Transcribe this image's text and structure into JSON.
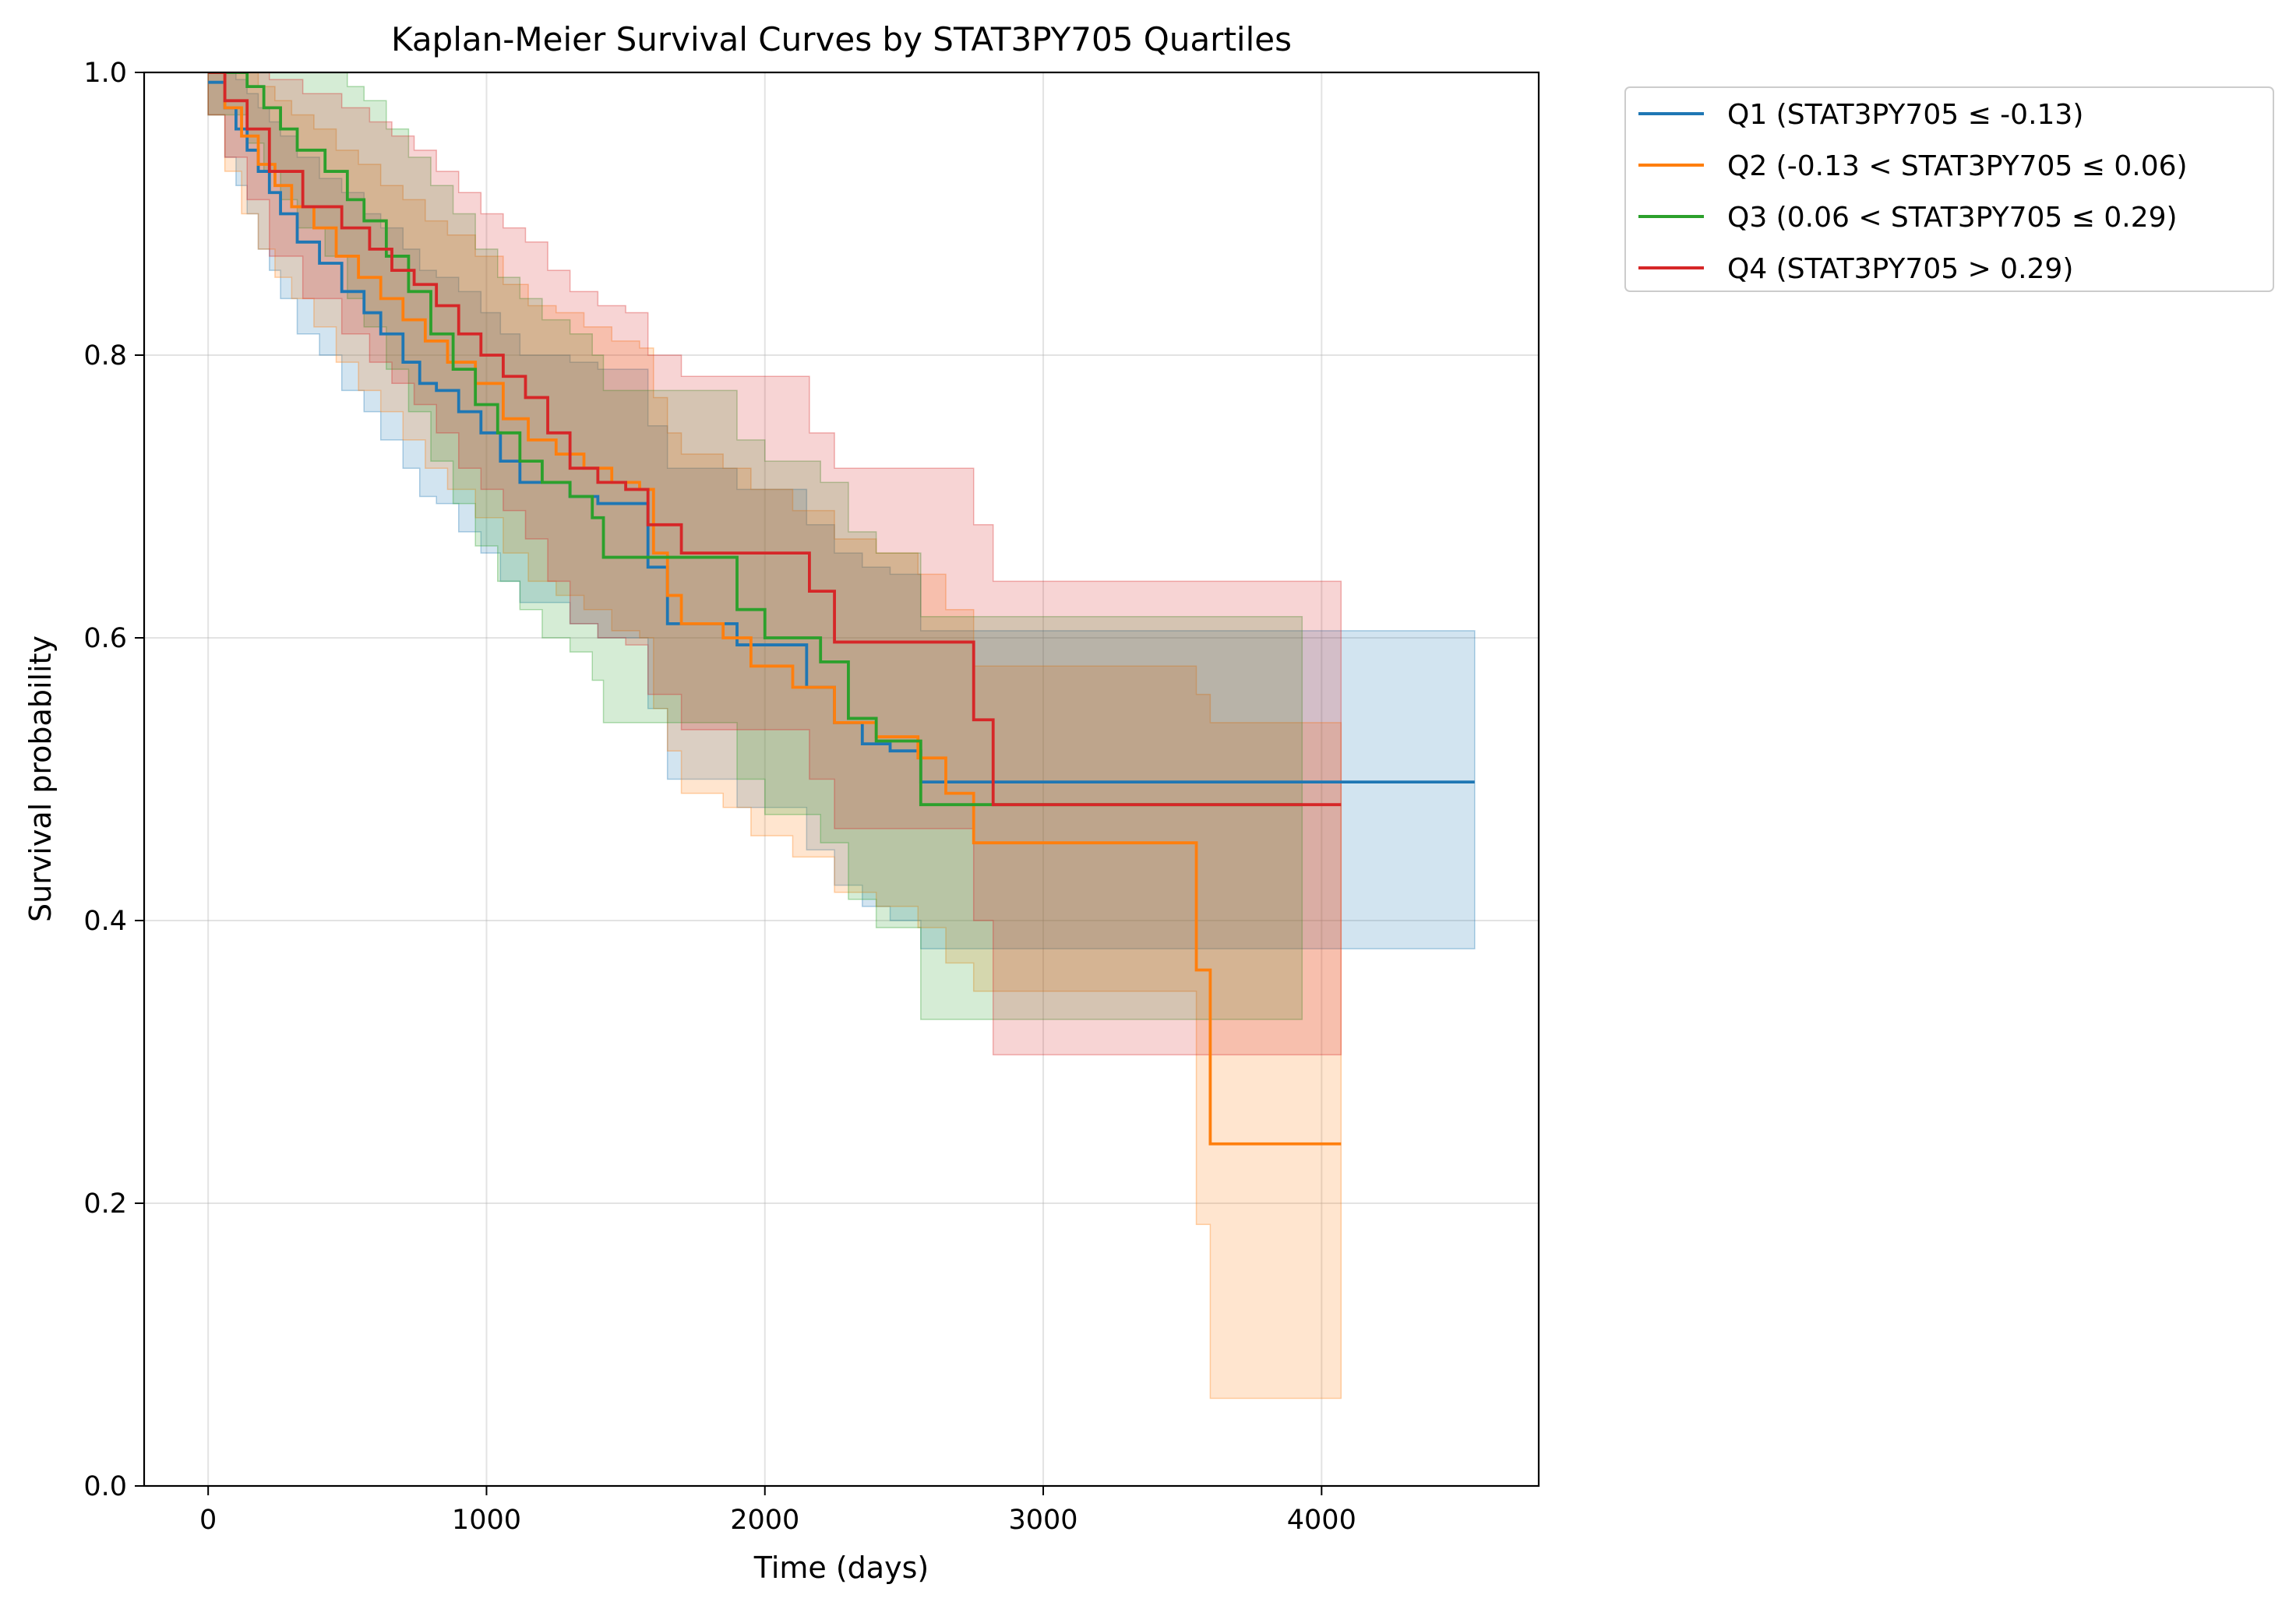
{
  "chart_data": {
    "type": "line",
    "title": "Kaplan-Meier Survival Curves by STAT3PY705 Quartiles",
    "xlabel": "Time (days)",
    "ylabel": "Survival probability",
    "xlim": [
      -230,
      4780
    ],
    "ylim": [
      0.0,
      1.0
    ],
    "xticks": [
      0,
      1000,
      2000,
      3000,
      4000
    ],
    "yticks": [
      0.0,
      0.2,
      0.4,
      0.6,
      0.8,
      1.0
    ],
    "xtick_labels": [
      "0",
      "1000",
      "2000",
      "3000",
      "4000"
    ],
    "ytick_labels": [
      "0.0",
      "0.2",
      "0.4",
      "0.6",
      "0.8",
      "1.0"
    ],
    "grid": true,
    "legend_position": "outside-top-right",
    "series": [
      {
        "name": "Q1 (STAT3PY705 ≤ -0.13)",
        "color": "#1f77b4",
        "x": [
          0,
          40,
          60,
          100,
          140,
          180,
          220,
          260,
          320,
          400,
          480,
          560,
          620,
          700,
          760,
          820,
          900,
          980,
          1050,
          1120,
          1200,
          1300,
          1400,
          1500,
          1580,
          1650,
          1700,
          1900,
          2000,
          2150,
          2250,
          2350,
          2450,
          2560,
          3000,
          3500,
          4000,
          4550
        ],
        "y": [
          0.993,
          0.993,
          0.975,
          0.96,
          0.945,
          0.93,
          0.915,
          0.9,
          0.88,
          0.865,
          0.845,
          0.83,
          0.815,
          0.795,
          0.78,
          0.775,
          0.76,
          0.745,
          0.725,
          0.71,
          0.71,
          0.7,
          0.695,
          0.695,
          0.65,
          0.61,
          0.61,
          0.595,
          0.595,
          0.565,
          0.54,
          0.525,
          0.52,
          0.498,
          0.498,
          0.498,
          0.498,
          0.498
        ],
        "upper": [
          1.0,
          1.0,
          1.0,
          0.995,
          0.985,
          0.975,
          0.965,
          0.955,
          0.94,
          0.925,
          0.915,
          0.9,
          0.89,
          0.875,
          0.86,
          0.855,
          0.845,
          0.83,
          0.815,
          0.8,
          0.8,
          0.795,
          0.79,
          0.79,
          0.75,
          0.72,
          0.72,
          0.705,
          0.705,
          0.68,
          0.66,
          0.65,
          0.645,
          0.605,
          0.605,
          0.605,
          0.605,
          0.605
        ],
        "lower": [
          0.97,
          0.97,
          0.94,
          0.92,
          0.9,
          0.875,
          0.86,
          0.84,
          0.815,
          0.8,
          0.775,
          0.76,
          0.74,
          0.72,
          0.7,
          0.695,
          0.675,
          0.66,
          0.64,
          0.625,
          0.625,
          0.61,
          0.6,
          0.6,
          0.55,
          0.5,
          0.5,
          0.48,
          0.48,
          0.45,
          0.425,
          0.41,
          0.4,
          0.38,
          0.38,
          0.38,
          0.38,
          0.38
        ]
      },
      {
        "name": "Q2 (-0.13 < STAT3PY705 ≤ 0.06)",
        "color": "#ff7f0e",
        "x": [
          0,
          60,
          120,
          180,
          240,
          300,
          380,
          460,
          540,
          620,
          700,
          780,
          860,
          960,
          1060,
          1150,
          1250,
          1350,
          1450,
          1550,
          1600,
          1650,
          1700,
          1850,
          1950,
          2100,
          2250,
          2400,
          2550,
          2650,
          2750,
          3000,
          3550,
          3600,
          3700,
          4070
        ],
        "y": [
          1.0,
          0.975,
          0.955,
          0.935,
          0.92,
          0.905,
          0.89,
          0.87,
          0.855,
          0.84,
          0.825,
          0.81,
          0.795,
          0.78,
          0.755,
          0.74,
          0.73,
          0.72,
          0.71,
          0.705,
          0.66,
          0.63,
          0.61,
          0.6,
          0.58,
          0.565,
          0.54,
          0.53,
          0.515,
          0.49,
          0.455,
          0.455,
          0.365,
          0.242,
          0.242,
          0.242
        ],
        "upper": [
          1.0,
          1.0,
          1.0,
          0.99,
          0.98,
          0.97,
          0.96,
          0.945,
          0.935,
          0.92,
          0.91,
          0.895,
          0.885,
          0.87,
          0.85,
          0.835,
          0.83,
          0.82,
          0.81,
          0.805,
          0.77,
          0.745,
          0.73,
          0.72,
          0.705,
          0.69,
          0.67,
          0.66,
          0.645,
          0.62,
          0.58,
          0.58,
          0.56,
          0.54,
          0.54,
          0.54
        ],
        "lower": [
          0.97,
          0.93,
          0.9,
          0.875,
          0.855,
          0.84,
          0.82,
          0.795,
          0.775,
          0.76,
          0.74,
          0.72,
          0.705,
          0.685,
          0.66,
          0.64,
          0.63,
          0.62,
          0.605,
          0.6,
          0.55,
          0.52,
          0.49,
          0.48,
          0.46,
          0.445,
          0.42,
          0.41,
          0.395,
          0.37,
          0.35,
          0.35,
          0.185,
          0.062,
          0.062,
          0.062
        ]
      },
      {
        "name": "Q3 (0.06 < STAT3PY705 ≤ 0.29)",
        "color": "#2ca02c",
        "x": [
          0,
          140,
          200,
          260,
          320,
          420,
          500,
          560,
          640,
          720,
          800,
          880,
          960,
          1040,
          1120,
          1200,
          1300,
          1380,
          1420,
          1500,
          1600,
          1700,
          1800,
          1900,
          2000,
          2100,
          2200,
          2300,
          2400,
          2500,
          2560,
          2700,
          2800,
          3000,
          3500,
          3930
        ],
        "y": [
          1.0,
          0.99,
          0.975,
          0.96,
          0.945,
          0.93,
          0.91,
          0.895,
          0.87,
          0.845,
          0.815,
          0.79,
          0.765,
          0.745,
          0.725,
          0.71,
          0.7,
          0.685,
          0.657,
          0.657,
          0.657,
          0.657,
          0.657,
          0.62,
          0.6,
          0.6,
          0.583,
          0.543,
          0.527,
          0.527,
          0.482,
          0.482,
          0.482,
          0.482,
          0.482,
          0.482
        ],
        "upper": [
          1.0,
          1.0,
          1.0,
          1.0,
          1.0,
          1.0,
          0.99,
          0.98,
          0.96,
          0.94,
          0.92,
          0.9,
          0.875,
          0.855,
          0.84,
          0.825,
          0.815,
          0.8,
          0.775,
          0.775,
          0.775,
          0.775,
          0.775,
          0.74,
          0.725,
          0.725,
          0.71,
          0.675,
          0.66,
          0.66,
          0.615,
          0.615,
          0.615,
          0.615,
          0.615,
          0.615
        ],
        "lower": [
          0.97,
          0.95,
          0.93,
          0.91,
          0.89,
          0.87,
          0.84,
          0.82,
          0.79,
          0.76,
          0.725,
          0.695,
          0.665,
          0.64,
          0.62,
          0.6,
          0.59,
          0.57,
          0.54,
          0.54,
          0.54,
          0.54,
          0.54,
          0.5,
          0.475,
          0.475,
          0.455,
          0.415,
          0.395,
          0.395,
          0.33,
          0.33,
          0.33,
          0.33,
          0.33,
          0.33
        ]
      },
      {
        "name": "Q4 (STAT3PY705 > 0.29)",
        "color": "#d62728",
        "x": [
          0,
          60,
          140,
          220,
          340,
          480,
          580,
          660,
          740,
          820,
          900,
          980,
          1060,
          1140,
          1220,
          1300,
          1400,
          1500,
          1580,
          1700,
          1800,
          2000,
          2100,
          2160,
          2250,
          2400,
          2600,
          2750,
          2820,
          3000,
          3500,
          4070
        ],
        "y": [
          1.0,
          0.98,
          0.96,
          0.93,
          0.905,
          0.89,
          0.875,
          0.86,
          0.85,
          0.835,
          0.815,
          0.8,
          0.785,
          0.77,
          0.745,
          0.72,
          0.71,
          0.705,
          0.68,
          0.66,
          0.66,
          0.66,
          0.66,
          0.633,
          0.597,
          0.597,
          0.597,
          0.542,
          0.482,
          0.482,
          0.482,
          0.482
        ],
        "upper": [
          1.0,
          1.0,
          1.0,
          0.995,
          0.985,
          0.975,
          0.965,
          0.955,
          0.945,
          0.93,
          0.915,
          0.9,
          0.89,
          0.88,
          0.86,
          0.845,
          0.835,
          0.83,
          0.8,
          0.785,
          0.785,
          0.785,
          0.785,
          0.745,
          0.72,
          0.72,
          0.72,
          0.68,
          0.64,
          0.64,
          0.64,
          0.64
        ],
        "lower": [
          0.97,
          0.94,
          0.91,
          0.87,
          0.84,
          0.815,
          0.795,
          0.78,
          0.765,
          0.745,
          0.72,
          0.705,
          0.69,
          0.67,
          0.64,
          0.61,
          0.6,
          0.595,
          0.56,
          0.535,
          0.535,
          0.535,
          0.535,
          0.5,
          0.465,
          0.465,
          0.465,
          0.4,
          0.305,
          0.305,
          0.305,
          0.305
        ]
      }
    ]
  }
}
